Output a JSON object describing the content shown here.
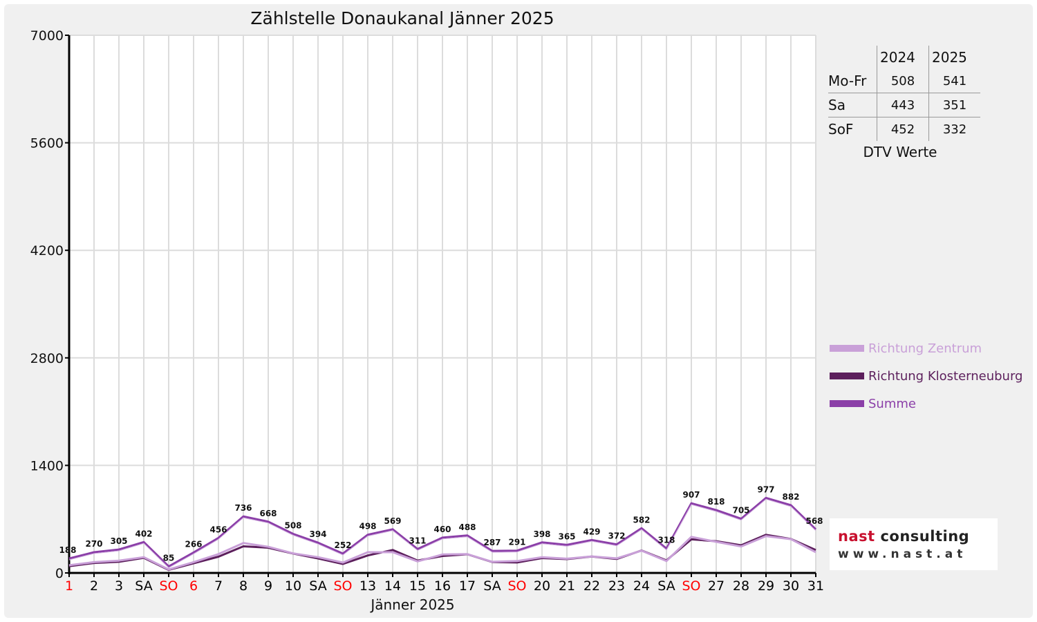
{
  "title": "Zählstelle Donaukanal Jänner 2025",
  "chart_data": {
    "type": "line",
    "title": "Zählstelle Donaukanal Jänner 2025",
    "xlabel": "Jänner 2025",
    "ylabel": "",
    "ylim": [
      0,
      7000
    ],
    "yticks": [
      0,
      1400,
      2800,
      4200,
      5600,
      7000
    ],
    "grid": true,
    "legend_position": "right",
    "categories": [
      "1",
      "2",
      "3",
      "SA",
      "SO",
      "6",
      "7",
      "8",
      "9",
      "10",
      "SA",
      "SO",
      "13",
      "14",
      "15",
      "16",
      "17",
      "SA",
      "SO",
      "20",
      "21",
      "22",
      "23",
      "24",
      "SA",
      "SO",
      "27",
      "28",
      "29",
      "30",
      "31"
    ],
    "category_colors": [
      "#ff0000",
      "#000000",
      "#000000",
      "#000000",
      "#ff0000",
      "#ff0000",
      "#000000",
      "#000000",
      "#000000",
      "#000000",
      "#000000",
      "#ff0000",
      "#000000",
      "#000000",
      "#000000",
      "#000000",
      "#000000",
      "#000000",
      "#ff0000",
      "#000000",
      "#000000",
      "#000000",
      "#000000",
      "#000000",
      "#000000",
      "#ff0000",
      "#000000",
      "#000000",
      "#000000",
      "#000000",
      "#000000"
    ],
    "series": [
      {
        "name": "Richtung Zentrum",
        "color": "#c9a0d8",
        "values": [
          100,
          140,
          160,
          205,
          45,
          140,
          245,
          390,
          340,
          255,
          205,
          135,
          270,
          270,
          150,
          240,
          245,
          145,
          155,
          205,
          185,
          215,
          190,
          290,
          155,
          470,
          405,
          345,
          480,
          440,
          270
        ]
      },
      {
        "name": "Richtung Klosterneuburg",
        "color": "#5c1f5c",
        "values": [
          88,
          130,
          145,
          197,
          40,
          126,
          211,
          346,
          328,
          253,
          189,
          117,
          228,
          299,
          161,
          220,
          243,
          142,
          136,
          193,
          180,
          214,
          182,
          292,
          163,
          437,
          413,
          360,
          497,
          442,
          298
        ]
      },
      {
        "name": "Summe",
        "color": "#8b3fa8",
        "values": [
          188,
          270,
          305,
          402,
          85,
          266,
          456,
          736,
          668,
          508,
          394,
          252,
          498,
          569,
          311,
          460,
          488,
          287,
          291,
          398,
          365,
          429,
          372,
          582,
          318,
          907,
          818,
          705,
          977,
          882,
          568
        ]
      }
    ],
    "data_labels": [
      "188",
      "270",
      "305",
      "402",
      "85",
      "266",
      "456",
      "736",
      "668",
      "508",
      "394",
      "252",
      "498",
      "569",
      "311",
      "460",
      "488",
      "287",
      "291",
      "398",
      "365",
      "429",
      "372",
      "582",
      "318",
      "907",
      "818",
      "705",
      "977",
      "882",
      "568"
    ]
  },
  "dtv_table": {
    "headers": [
      "",
      "2024",
      "2025"
    ],
    "rows": [
      {
        "label": "Mo-Fr",
        "v2024": "508",
        "v2025": "541"
      },
      {
        "label": "Sa",
        "v2024": "443",
        "v2025": "351"
      },
      {
        "label": "SoF",
        "v2024": "452",
        "v2025": "332"
      }
    ],
    "caption": "DTV Werte"
  },
  "legend": [
    {
      "label": "Richtung Zentrum",
      "color": "#c9a0d8"
    },
    {
      "label": "Richtung Klosterneuburg",
      "color": "#5c1f5c"
    },
    {
      "label": "Summe",
      "color": "#8b3fa8"
    }
  ],
  "logo": {
    "line1_red": "nast",
    "line1_rest": " consulting",
    "line2": "www.nast.at"
  }
}
